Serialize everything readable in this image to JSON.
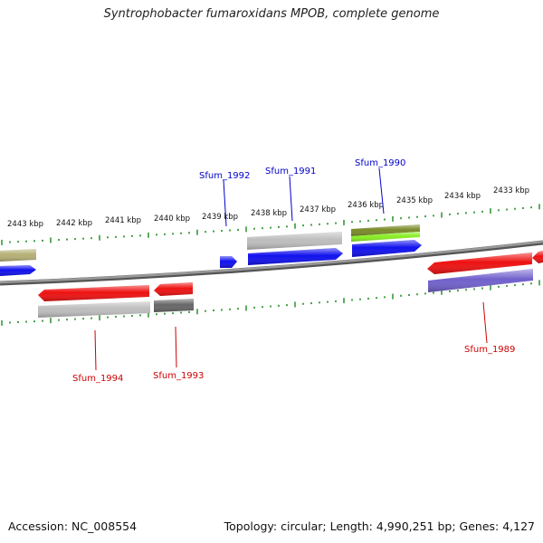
{
  "title": "Syntrophobacter fumaroxidans MPOB, complete genome",
  "footer": {
    "accession": "Accession: NC_008554",
    "topology": "Topology: circular; Length: 4,990,251 bp; Genes: 4,127"
  },
  "colors": {
    "backbone": "#808080",
    "tick": "#1a8a1a",
    "tick_label": "#111111",
    "gene_label_blue": "#0000cc",
    "gene_label_red": "#cc0000"
  },
  "tick_labels": [
    {
      "id": "2443",
      "text": "2443 kbp"
    },
    {
      "id": "2442",
      "text": "2442 kbp"
    },
    {
      "id": "2441",
      "text": "2441 kbp"
    },
    {
      "id": "2440",
      "text": "2440 kbp"
    },
    {
      "id": "2439",
      "text": "2439 kbp"
    },
    {
      "id": "2438",
      "text": "2438 kbp"
    },
    {
      "id": "2437",
      "text": "2437 kbp"
    },
    {
      "id": "2436",
      "text": "2436 kbp"
    },
    {
      "id": "2435",
      "text": "2435 kbp"
    },
    {
      "id": "2434",
      "text": "2434 kbp"
    },
    {
      "id": "2433",
      "text": "2433 kbp"
    }
  ],
  "gene_labels": [
    {
      "id": "sfum1992",
      "text": "Sfum_1992",
      "color": "#0000cc"
    },
    {
      "id": "sfum1991",
      "text": "Sfum_1991",
      "color": "#0000cc"
    },
    {
      "id": "sfum1990",
      "text": "Sfum_1990",
      "color": "#0000cc"
    },
    {
      "id": "sfum1994",
      "text": "Sfum_1994",
      "color": "#cc0000"
    },
    {
      "id": "sfum1993",
      "text": "Sfum_1993",
      "color": "#cc0000"
    },
    {
      "id": "sfum1989",
      "text": "Sfum_1989",
      "color": "#cc0000"
    }
  ],
  "features": [
    {
      "id": "olive-left",
      "color": "#b5b076"
    },
    {
      "id": "blue-left",
      "color": "#1010ee"
    },
    {
      "id": "blue-1992",
      "color": "#1010ee"
    },
    {
      "id": "grey-1991",
      "color": "#bdbdbd"
    },
    {
      "id": "blue-1991",
      "color": "#1010ee"
    },
    {
      "id": "olive-1990",
      "color": "#7a8a2a"
    },
    {
      "id": "green-1990",
      "color": "#88ee22"
    },
    {
      "id": "blue-1990",
      "color": "#1010ee"
    },
    {
      "id": "red-1994",
      "color": "#ee1111"
    },
    {
      "id": "grey-1994",
      "color": "#bdbdbd"
    },
    {
      "id": "red-1993",
      "color": "#ee1111"
    },
    {
      "id": "dark-1993",
      "color": "#666666"
    },
    {
      "id": "red-1989",
      "color": "#ee1111"
    },
    {
      "id": "purple-1989",
      "color": "#7060cc"
    },
    {
      "id": "red-right",
      "color": "#ee1111"
    }
  ]
}
